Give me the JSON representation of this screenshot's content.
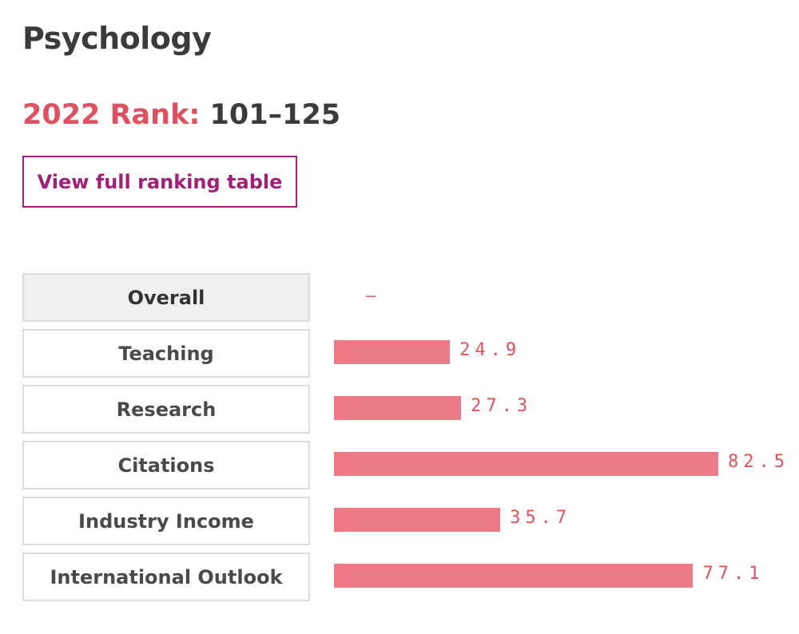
{
  "subject": "Psychology",
  "rank": {
    "label": "2022 Rank:",
    "value": "101–125"
  },
  "view_button_label": "View full ranking table",
  "colors": {
    "accent": "#e0505e",
    "bar": "#ee7a85",
    "button_border": "#a21e78",
    "title": "#3b3b3b"
  },
  "chart_data": {
    "type": "bar",
    "orientation": "horizontal",
    "categories": [
      "Overall",
      "Teaching",
      "Research",
      "Citations",
      "Industry Income",
      "International Outlook"
    ],
    "values": [
      null,
      24.9,
      27.3,
      82.5,
      35.7,
      77.1
    ],
    "value_labels": [
      "–",
      "24.9",
      "27.3",
      "82.5",
      "35.7",
      "77.1"
    ],
    "selected_category": "Overall",
    "xlim": [
      0,
      100
    ],
    "title": "",
    "xlabel": "",
    "ylabel": "",
    "grid": false,
    "legend": "none"
  }
}
